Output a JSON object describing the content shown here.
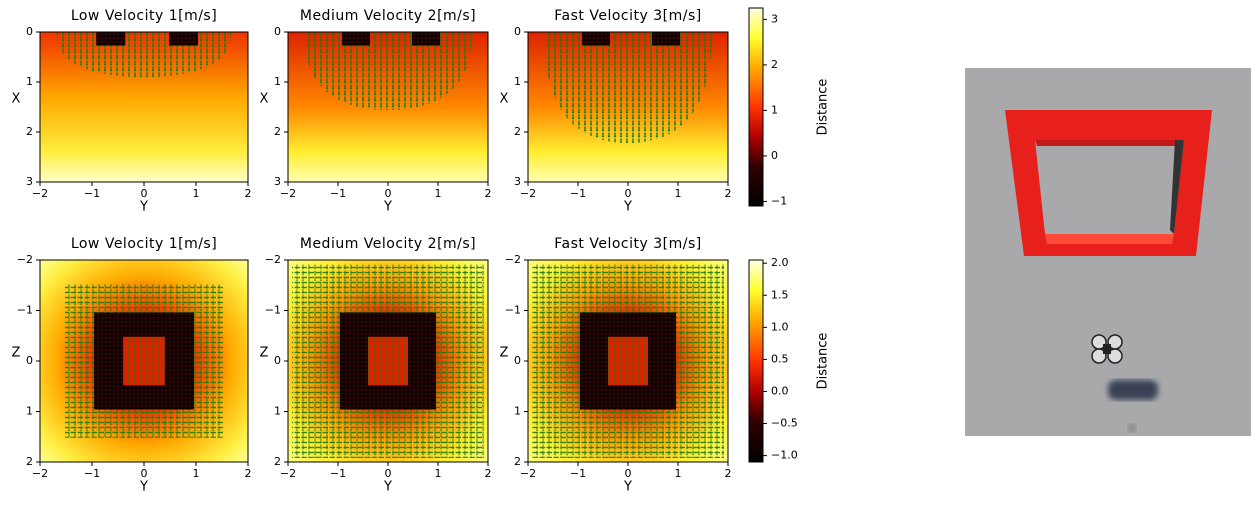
{
  "chart_data": [
    {
      "type": "heatmap",
      "title": "Low Velocity 1[m/s]",
      "xlabel": "Y",
      "ylabel": "X",
      "xlim": [
        -2,
        2
      ],
      "ylim": [
        0,
        3
      ],
      "invert_y": true,
      "xticks": [
        {
          "value": -2,
          "label": "−2"
        },
        {
          "value": -1,
          "label": "−1"
        },
        0,
        1,
        2
      ],
      "yticks": [
        0,
        1,
        2,
        3
      ]
    },
    {
      "type": "heatmap",
      "title": "Medium Velocity 2[m/s]",
      "xlabel": "Y",
      "ylabel": "X",
      "xlim": [
        -2,
        2
      ],
      "ylim": [
        0,
        3
      ],
      "invert_y": true,
      "xticks": [
        {
          "value": -2,
          "label": "−2"
        },
        {
          "value": -1,
          "label": "−1"
        },
        0,
        1,
        2
      ],
      "yticks": [
        0,
        1,
        2,
        3
      ]
    },
    {
      "type": "heatmap",
      "title": "Fast Velocity 3[m/s]",
      "xlabel": "Y",
      "ylabel": "X",
      "xlim": [
        -2,
        2
      ],
      "ylim": [
        0,
        3
      ],
      "invert_y": true,
      "xticks": [
        {
          "value": -2,
          "label": "−2"
        },
        {
          "value": -1,
          "label": "−1"
        },
        0,
        1,
        2
      ],
      "yticks": [
        0,
        1,
        2,
        3
      ]
    },
    {
      "type": "colorbar",
      "label": "Distance",
      "ylim": [
        -1.1,
        3.25
      ],
      "yticks": [
        {
          "value": -1,
          "label": "−1"
        },
        0,
        1,
        2,
        3
      ]
    },
    {
      "type": "heatmap",
      "title": "Low Velocity 1[m/s]",
      "xlabel": "Y",
      "ylabel": "Z",
      "xlim": [
        -2,
        2
      ],
      "ylim": [
        -2,
        2
      ],
      "invert_y": true,
      "xticks": [
        {
          "value": -2,
          "label": "−2"
        },
        {
          "value": -1,
          "label": "−1"
        },
        0,
        1,
        2
      ],
      "yticks": [
        {
          "value": -2,
          "label": "−2"
        },
        {
          "value": -1,
          "label": "−1"
        },
        0,
        1,
        2
      ]
    },
    {
      "type": "heatmap",
      "title": "Medium Velocity 2[m/s]",
      "xlabel": "Y",
      "ylabel": "Z",
      "xlim": [
        -2,
        2
      ],
      "ylim": [
        -2,
        2
      ],
      "invert_y": true,
      "xticks": [
        {
          "value": -2,
          "label": "−2"
        },
        {
          "value": -1,
          "label": "−1"
        },
        0,
        1,
        2
      ],
      "yticks": [
        {
          "value": -2,
          "label": "−2"
        },
        {
          "value": -1,
          "label": "−1"
        },
        0,
        1,
        2
      ]
    },
    {
      "type": "heatmap",
      "title": "Fast Velocity 3[m/s]",
      "xlabel": "Y",
      "ylabel": "Z",
      "xlim": [
        -2,
        2
      ],
      "ylim": [
        -2,
        2
      ],
      "invert_y": true,
      "xticks": [
        {
          "value": -2,
          "label": "−2"
        },
        {
          "value": -1,
          "label": "−1"
        },
        0,
        1,
        2
      ],
      "yticks": [
        {
          "value": -2,
          "label": "−2"
        },
        {
          "value": -1,
          "label": "−1"
        },
        0,
        1,
        2
      ]
    },
    {
      "type": "colorbar",
      "label": "Distance",
      "ylim": [
        -1.1,
        2.05
      ],
      "yticks": [
        {
          "value": -1,
          "label": "−1.0"
        },
        {
          "value": -0.5,
          "label": "−0.5"
        },
        {
          "value": 0,
          "label": "0.0"
        },
        0.5,
        {
          "value": 1,
          "label": "1.0"
        },
        1.5,
        {
          "value": 2,
          "label": "2.0"
        }
      ]
    }
  ]
}
